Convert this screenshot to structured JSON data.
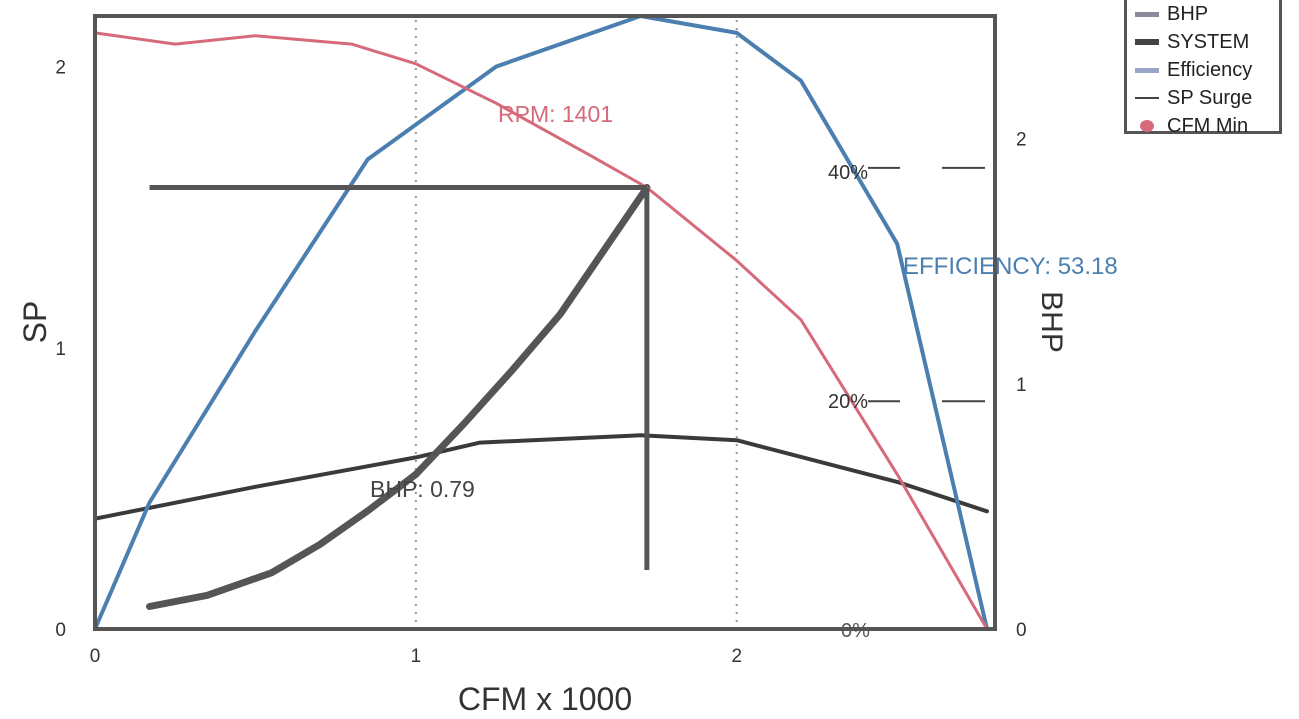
{
  "chart_data": {
    "type": "line",
    "title": "",
    "xlabel": "CFM x 1000",
    "ylabel_left": "SP",
    "ylabel_right": "BHP",
    "xlim": [
      0,
      2.78
    ],
    "ylim_left": [
      0,
      2.18
    ],
    "ylim_right": [
      0,
      2.5
    ],
    "x_ticks": [
      "0",
      "1",
      "2"
    ],
    "y_ticks_left": [
      "0",
      "1",
      "2"
    ],
    "y_ticks_right": [
      "0",
      "1",
      "2"
    ],
    "grid": "dotted vertical",
    "legend_position": "top-right",
    "series": [
      {
        "name": "BHP",
        "axis": "right",
        "color": "#3a3a3a",
        "points": [
          [
            0,
            0.45
          ],
          [
            0.5,
            0.58
          ],
          [
            1.0,
            0.7
          ],
          [
            1.2,
            0.76
          ],
          [
            1.7,
            0.79
          ],
          [
            2.0,
            0.77
          ],
          [
            2.5,
            0.6
          ],
          [
            2.78,
            0.48
          ]
        ]
      },
      {
        "name": "SYSTEM",
        "axis": "left",
        "color": "#555555",
        "points": [
          [
            0.17,
            0.08
          ],
          [
            0.35,
            0.12
          ],
          [
            0.55,
            0.2
          ],
          [
            0.7,
            0.3
          ],
          [
            0.85,
            0.42
          ],
          [
            1.0,
            0.55
          ],
          [
            1.15,
            0.73
          ],
          [
            1.3,
            0.92
          ],
          [
            1.45,
            1.12
          ],
          [
            1.6,
            1.37
          ],
          [
            1.72,
            1.57
          ]
        ]
      },
      {
        "name": "Efficiency",
        "axis": "left",
        "color": "#4a7fb0",
        "points": [
          [
            0,
            0
          ],
          [
            0.17,
            0.45
          ],
          [
            0.5,
            1.06
          ],
          [
            0.85,
            1.67
          ],
          [
            1.25,
            2.0
          ],
          [
            1.7,
            2.18
          ],
          [
            2.0,
            2.12
          ],
          [
            2.2,
            1.95
          ],
          [
            2.5,
            1.37
          ],
          [
            2.78,
            0
          ]
        ]
      },
      {
        "name": "RPM",
        "axis": "left",
        "color": "#d66a7a",
        "points": [
          [
            0,
            2.12
          ],
          [
            0.25,
            2.08
          ],
          [
            0.5,
            2.11
          ],
          [
            0.8,
            2.08
          ],
          [
            1.0,
            2.01
          ],
          [
            1.25,
            1.87
          ],
          [
            1.55,
            1.68
          ],
          [
            1.72,
            1.57
          ],
          [
            2.0,
            1.31
          ],
          [
            2.2,
            1.1
          ],
          [
            2.5,
            0.55
          ],
          [
            2.78,
            0
          ]
        ]
      }
    ],
    "operating_point": {
      "cfm": 1.72,
      "sp": 1.57
    },
    "annotations": {
      "rpm": "RPM: 1401",
      "efficiency": "EFFICIENCY: 53.18",
      "bhp": "BHP: 0.79",
      "eff_40": "40%",
      "eff_20": "20%",
      "eff_0": "0%"
    }
  },
  "legend": {
    "items": [
      {
        "label": "BHP",
        "color": "#8a8a9a"
      },
      {
        "label": "SYSTEM",
        "color": "#444444"
      },
      {
        "label": "Efficiency",
        "color": "#9aa6c8"
      },
      {
        "label": "SP Surge",
        "color": "#444444"
      },
      {
        "label": "CFM Min",
        "color": "#d66a7a"
      }
    ]
  }
}
